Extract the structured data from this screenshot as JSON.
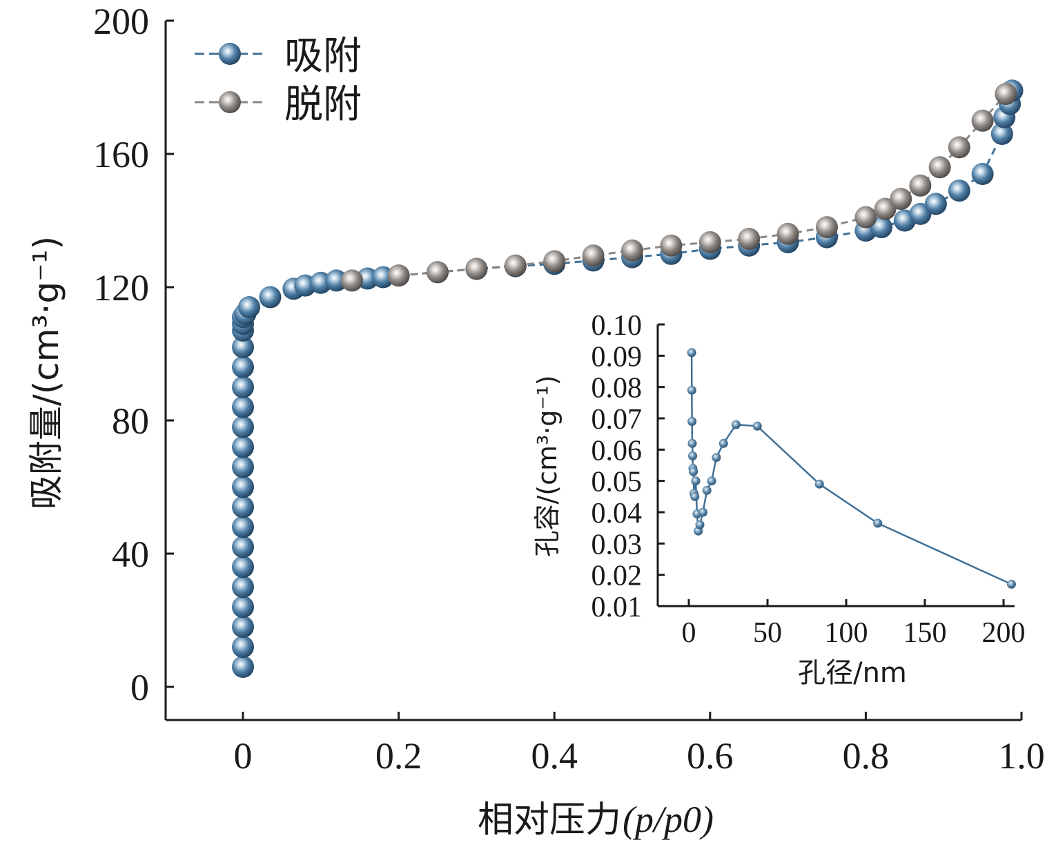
{
  "colors": {
    "adsorption": "#3f6f96",
    "desorption": "#8a8683",
    "inset": "#3f6f96"
  },
  "chart_data": [
    {
      "type": "scatter",
      "xlabel": "相对压力",
      "xlabel_suffix": "(p/p0)",
      "ylabel": "吸附量/(cm³·g⁻¹)",
      "xlim": [
        -0.1,
        1.0
      ],
      "ylim": [
        -10,
        200
      ],
      "x_ticks": [
        0,
        0.2,
        0.4,
        0.6,
        0.8,
        1.0
      ],
      "x_tick_labels": [
        "0",
        "0.2",
        "0.4",
        "0.6",
        "0.8",
        "1.0"
      ],
      "y_ticks": [
        0,
        40,
        80,
        120,
        160,
        200
      ],
      "y_tick_labels": [
        "0",
        "40",
        "80",
        "120",
        "160",
        "200"
      ],
      "legend_position": "top-left",
      "grid": false,
      "series": [
        {
          "name": "吸附",
          "x": [
            0.0,
            0.0,
            0.0,
            0.0,
            0.0,
            0.0,
            0.0,
            0.0,
            0.0,
            0.0,
            0.0,
            0.0,
            0.0,
            0.0,
            0.0,
            0.0,
            0.0,
            0.0,
            0.0,
            0.0,
            0.003,
            0.008,
            0.035,
            0.065,
            0.08,
            0.1,
            0.12,
            0.16,
            0.18,
            0.2,
            0.25,
            0.3,
            0.35,
            0.4,
            0.45,
            0.5,
            0.55,
            0.6,
            0.65,
            0.7,
            0.75,
            0.8,
            0.82,
            0.85,
            0.87,
            0.89,
            0.92,
            0.95,
            0.975,
            0.978,
            0.985,
            0.988
          ],
          "y": [
            6,
            12,
            18,
            24,
            30,
            36,
            42,
            48,
            54,
            60,
            66,
            72,
            78,
            84,
            90,
            96,
            102,
            107,
            109,
            111,
            112,
            114,
            117,
            119.5,
            120.5,
            121.3,
            122,
            122.6,
            123,
            123.5,
            124.5,
            125.5,
            126.3,
            127,
            128,
            129,
            130,
            131.5,
            132.5,
            133.5,
            135,
            137,
            138,
            140,
            142,
            145,
            149,
            154,
            166,
            171,
            175,
            179
          ]
        },
        {
          "name": "脱附",
          "x": [
            0.14,
            0.2,
            0.25,
            0.3,
            0.35,
            0.4,
            0.45,
            0.5,
            0.55,
            0.6,
            0.65,
            0.7,
            0.75,
            0.8,
            0.825,
            0.845,
            0.87,
            0.895,
            0.92,
            0.95,
            0.98
          ],
          "y": [
            122,
            123.5,
            124.5,
            125.5,
            126.5,
            127.8,
            129.5,
            131,
            132.5,
            133.5,
            134.5,
            136,
            138,
            141,
            143.5,
            146.5,
            150.5,
            156,
            162,
            170,
            178
          ]
        }
      ]
    },
    {
      "type": "line",
      "xlabel": "孔径/nm",
      "ylabel": "孔容/(cm³·g⁻¹)",
      "xlim": [
        -20,
        210
      ],
      "ylim": [
        0.01,
        0.1
      ],
      "x_ticks": [
        0,
        50,
        100,
        150,
        200
      ],
      "x_tick_labels": [
        "0",
        "50",
        "100",
        "150",
        "200"
      ],
      "y_ticks": [
        0.01,
        0.02,
        0.03,
        0.04,
        0.05,
        0.06,
        0.07,
        0.08,
        0.09,
        0.1
      ],
      "y_tick_labels": [
        "0.01",
        "0.02",
        "0.03",
        "0.04",
        "0.05",
        "0.06",
        "0.07",
        "0.08",
        "0.09",
        "0.10"
      ],
      "grid": false,
      "series": [
        {
          "x": [
            1.8,
            1.9,
            2.0,
            2.2,
            2.4,
            2.6,
            2.9,
            3.3,
            3.8,
            4.4,
            5.2,
            6.0,
            7.0,
            9.0,
            11.5,
            14.5,
            17.5,
            22.0,
            30.0,
            43.5,
            83.0,
            120.0,
            205.0
          ],
          "y": [
            0.091,
            0.079,
            0.069,
            0.062,
            0.058,
            0.054,
            0.053,
            0.046,
            0.045,
            0.05,
            0.0395,
            0.034,
            0.036,
            0.04,
            0.047,
            0.05,
            0.0575,
            0.062,
            0.068,
            0.0675,
            0.049,
            0.0365,
            0.017
          ]
        }
      ]
    }
  ]
}
